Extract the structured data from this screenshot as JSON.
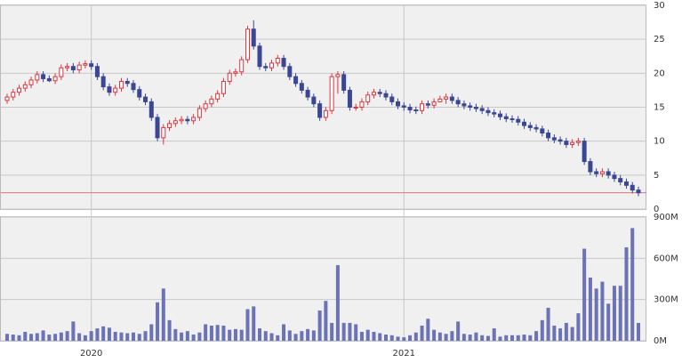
{
  "chart_data": [
    {
      "type": "candlestick",
      "categories": [
        null,
        null,
        null,
        null,
        null,
        null,
        null,
        null,
        null,
        null,
        null,
        null,
        null,
        null,
        "2020",
        null,
        null,
        null,
        null,
        null,
        null,
        null,
        null,
        null,
        null,
        null,
        null,
        null,
        null,
        null,
        null,
        null,
        null,
        null,
        null,
        null,
        null,
        null,
        null,
        null,
        null,
        null,
        null,
        null,
        null,
        null,
        null,
        null,
        null,
        null,
        null,
        null,
        null,
        null,
        null,
        null,
        null,
        null,
        null,
        null,
        null,
        null,
        null,
        null,
        null,
        null,
        "2021",
        null,
        null,
        null,
        null,
        null,
        null,
        null,
        null,
        null,
        null,
        null,
        null,
        null,
        null,
        null,
        null,
        null,
        null,
        null,
        null,
        null,
        null,
        null,
        null,
        null,
        null,
        null,
        null,
        null,
        null,
        null,
        null,
        null,
        null,
        null,
        null,
        null,
        null,
        null
      ],
      "open": [
        16,
        16.5,
        17.2,
        17.8,
        18.3,
        19,
        19.8,
        19.2,
        18.9,
        19.5,
        20.8,
        21.0,
        20.5,
        21.2,
        21.4,
        21.0,
        19.5,
        18,
        17.2,
        17.8,
        18.8,
        18.5,
        17.6,
        16.5,
        15.8,
        13.5,
        10.5,
        12,
        12.6,
        13,
        13.2,
        13,
        13.5,
        14.8,
        15.5,
        16.2,
        17,
        18.8,
        20,
        20.2,
        22,
        26.5,
        24,
        21,
        20.8,
        21.5,
        22.2,
        21,
        19.5,
        18.5,
        17.5,
        16.5,
        15.5,
        13.5,
        14.5,
        19.5,
        19.8,
        17.5,
        15,
        15,
        15.8,
        16.8,
        17.2,
        17,
        16.5,
        15.8,
        15.2,
        15,
        14.6,
        14.5,
        15.5,
        15.3,
        15.8,
        16.2,
        16.5,
        16.0,
        15.5,
        15.2,
        15,
        14.8,
        14.5,
        14.2,
        14,
        13.6,
        13.3,
        13.2,
        12.8,
        12.3,
        12,
        11.8,
        11.2,
        10.5,
        10.2,
        10.0,
        9.5,
        9.8,
        10,
        7,
        5.5,
        5.2,
        5.5,
        5,
        4.5,
        4,
        3.5,
        2.8
      ],
      "high": [
        17,
        17.7,
        18.3,
        18.8,
        19.5,
        20.3,
        20.3,
        19.7,
        20,
        21.3,
        21.5,
        21.5,
        21.7,
        21.9,
        21.9,
        21.5,
        20,
        18.5,
        18.3,
        19.3,
        19.3,
        19,
        18.1,
        17,
        16.3,
        14,
        12.5,
        13.1,
        13.5,
        13.7,
        13.7,
        14,
        15.3,
        16,
        16.7,
        17.5,
        19.3,
        20.5,
        20.7,
        22.5,
        27,
        27.8,
        24.5,
        21.5,
        22,
        22.7,
        22.7,
        21.5,
        20,
        19,
        18,
        17,
        16,
        15,
        20,
        20.3,
        20.3,
        18,
        15.5,
        16.3,
        17.3,
        17.7,
        17.7,
        17.5,
        17,
        16.3,
        15.7,
        15.5,
        15.1,
        16,
        16,
        16.3,
        16.7,
        17,
        17,
        16.5,
        16,
        15.7,
        15.5,
        15.3,
        15,
        14.7,
        14.5,
        14.1,
        13.8,
        13.7,
        13.3,
        12.8,
        12.5,
        12.3,
        11.7,
        11,
        10.7,
        10.5,
        10.3,
        10.5,
        10.5,
        7.5,
        6,
        6,
        6,
        5.5,
        5,
        4.5,
        4,
        3.3
      ],
      "low": [
        15.5,
        16,
        16.7,
        17.3,
        17.8,
        18.5,
        18.7,
        18.7,
        18.4,
        19,
        20.3,
        20,
        20,
        20.7,
        20.5,
        19,
        17.5,
        16.7,
        16.7,
        17.3,
        18,
        17.1,
        16,
        15.3,
        13,
        10,
        9.5,
        11.5,
        12.1,
        12.5,
        12.5,
        12.5,
        13,
        14.3,
        15,
        15.7,
        16.5,
        18.3,
        19.5,
        19.7,
        21.5,
        23.5,
        20.5,
        20.3,
        20.3,
        21,
        20.5,
        19,
        18,
        17,
        16,
        15,
        13,
        13,
        14,
        17,
        17,
        14.5,
        14.5,
        14.5,
        15.3,
        16.3,
        16.5,
        16,
        15.3,
        14.7,
        14.5,
        14.1,
        14,
        14,
        14.8,
        14.8,
        15.7,
        15.5,
        15.5,
        15,
        14.7,
        14.5,
        14.3,
        14,
        13.7,
        13.5,
        13.1,
        12.8,
        12.7,
        12.3,
        11.8,
        11.5,
        11.3,
        10.7,
        10,
        9.7,
        9.5,
        9,
        9,
        9.3,
        6.5,
        5,
        4.7,
        4.7,
        4.5,
        4,
        3.5,
        3,
        2.3,
        1.9
      ],
      "close": [
        16.5,
        17.2,
        17.8,
        18.3,
        19,
        19.8,
        19.2,
        18.9,
        19.5,
        20.8,
        21.0,
        20.5,
        21.2,
        21.4,
        21.0,
        19.5,
        18,
        17.2,
        17.8,
        18.8,
        18.5,
        17.6,
        16.5,
        15.8,
        13.5,
        10.5,
        12,
        12.6,
        13,
        13.2,
        13,
        13.5,
        14.8,
        15.5,
        16.2,
        17,
        18.8,
        20,
        20.2,
        22,
        26.5,
        24,
        21,
        20.8,
        21.5,
        22.2,
        21,
        19.5,
        18.5,
        17.5,
        16.5,
        15.5,
        13.5,
        14.5,
        19.5,
        19.8,
        17.5,
        15,
        15,
        15.8,
        16.8,
        17.2,
        17,
        16.5,
        15.8,
        15.2,
        15,
        14.6,
        14.5,
        15.5,
        15.3,
        15.8,
        16.2,
        16.5,
        16.0,
        15.5,
        15.2,
        15,
        14.8,
        14.5,
        14.2,
        14,
        13.6,
        13.3,
        13.2,
        12.8,
        12.3,
        12,
        11.8,
        11.2,
        10.5,
        10.2,
        10.0,
        9.5,
        9.8,
        10,
        7,
        5.5,
        5.2,
        5.5,
        5,
        4.5,
        4,
        3.5,
        2.8,
        2.4
      ],
      "up_color": "#d9363e",
      "down_color": "#3a4794",
      "reference_line": {
        "value": 2.4,
        "color": "#e57373"
      },
      "ylim": [
        0,
        30
      ],
      "yticks": [
        0,
        5,
        10,
        15,
        20,
        25,
        30
      ],
      "grid": true
    },
    {
      "type": "bar",
      "values": [
        50,
        45,
        40,
        65,
        50,
        55,
        75,
        45,
        50,
        60,
        70,
        140,
        55,
        40,
        70,
        90,
        105,
        95,
        65,
        60,
        55,
        60,
        50,
        70,
        120,
        280,
        380,
        150,
        85,
        60,
        70,
        45,
        60,
        120,
        110,
        115,
        110,
        80,
        85,
        80,
        230,
        250,
        90,
        70,
        55,
        40,
        120,
        75,
        50,
        70,
        85,
        75,
        220,
        290,
        130,
        550,
        130,
        130,
        120,
        65,
        80,
        65,
        55,
        45,
        40,
        30,
        25,
        40,
        60,
        110,
        160,
        80,
        60,
        50,
        70,
        140,
        50,
        45,
        60,
        40,
        35,
        90,
        30,
        40,
        40,
        40,
        45,
        40,
        70,
        150,
        240,
        110,
        90,
        130,
        100,
        200,
        670,
        460,
        380,
        430,
        270,
        400,
        400,
        680,
        820,
        130
      ],
      "color": "#6b72b5",
      "ylim": [
        0,
        900
      ],
      "yticks": [
        {
          "value": 0,
          "label": "0M"
        },
        {
          "value": 300,
          "label": "300M"
        },
        {
          "value": 600,
          "label": "600M"
        },
        {
          "value": 900,
          "label": "900M"
        }
      ],
      "grid": true
    }
  ]
}
